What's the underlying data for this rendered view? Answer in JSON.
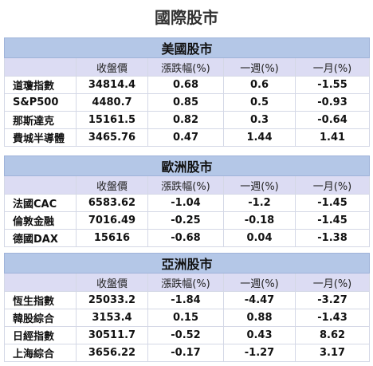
{
  "title": "國際股市",
  "columns": [
    "收盤價",
    "漲跌幅(%)",
    "一週(%)",
    "一月(%)"
  ],
  "sections": [
    {
      "name": "美國股市",
      "rows": [
        [
          "道瓊指數",
          34814.4,
          0.68,
          0.6,
          -1.55
        ],
        [
          "S&P500",
          4480.7,
          0.85,
          0.5,
          -0.93
        ],
        [
          "那斯達克",
          15161.5,
          0.82,
          0.3,
          -0.64
        ],
        [
          "費城半導體",
          3465.76,
          0.47,
          1.44,
          1.41
        ]
      ]
    },
    {
      "name": "歐洲股市",
      "rows": [
        [
          "法國CAC",
          6583.62,
          -1.04,
          -1.2,
          -1.45
        ],
        [
          "倫敦金融",
          7016.49,
          -0.25,
          -0.18,
          -1.45
        ],
        [
          "德國DAX",
          15616,
          -0.68,
          0.04,
          -1.38
        ]
      ]
    },
    {
      "name": "亞洲股市",
      "rows": [
        [
          "恆生指數",
          25033.2,
          -1.84,
          -4.47,
          -3.27
        ],
        [
          "韓股綜合",
          3153.4,
          0.15,
          0.88,
          -1.43
        ],
        [
          "日經指數",
          30511.7,
          -0.52,
          0.43,
          8.62
        ],
        [
          "上海綜合",
          3656.22,
          -0.17,
          -1.27,
          3.17
        ]
      ]
    }
  ]
}
